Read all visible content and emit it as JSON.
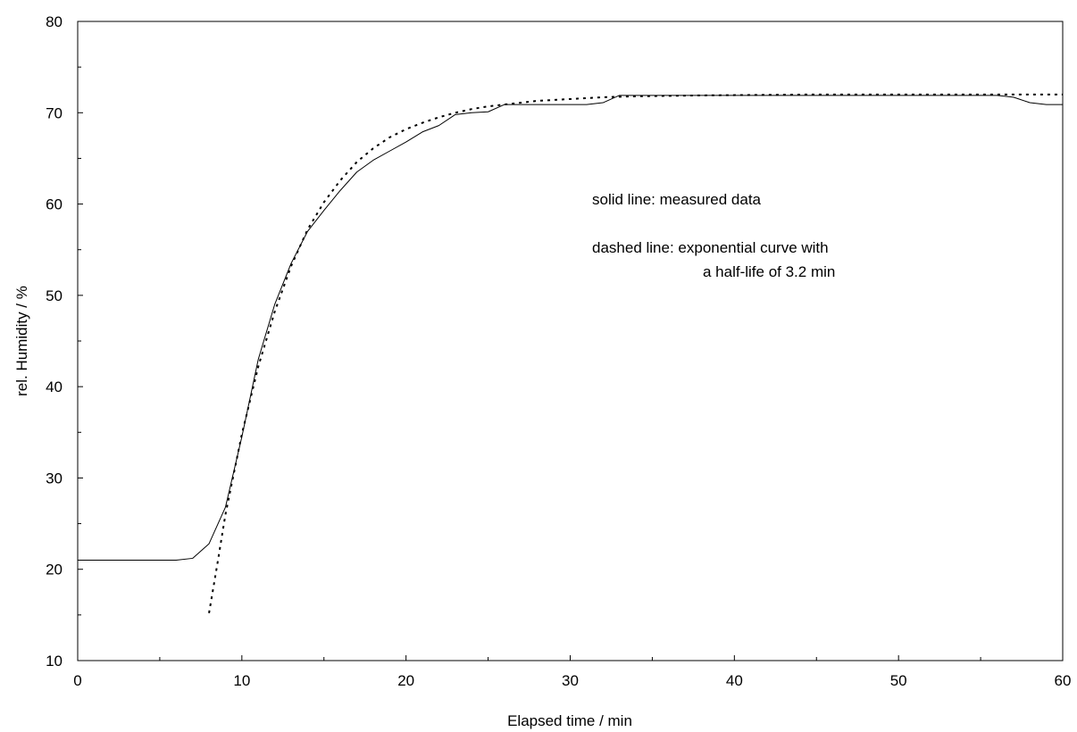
{
  "chart_data": {
    "type": "line",
    "title": "",
    "xlabel": "Elapsed time / min",
    "ylabel": "rel. Humidity / %",
    "xlim": [
      0,
      60
    ],
    "ylim": [
      10,
      80
    ],
    "x_major_ticks": [
      0,
      10,
      20,
      30,
      40,
      50,
      60
    ],
    "x_minor_ticks": [
      5,
      15,
      25,
      35,
      45,
      55
    ],
    "y_major_ticks": [
      10,
      20,
      30,
      40,
      50,
      60,
      70,
      80
    ],
    "y_minor_ticks": [
      15,
      25,
      35,
      45,
      55,
      65,
      75
    ],
    "grid": false,
    "annotations": [
      "solid line: measured data",
      "dashed line: exponential curve with",
      "a half-life of 3.2 min"
    ],
    "series": [
      {
        "style": "solid",
        "color": "#000000",
        "points": [
          [
            0,
            21
          ],
          [
            6,
            21
          ],
          [
            7,
            21.2
          ],
          [
            8,
            22.8
          ],
          [
            9,
            26.8
          ],
          [
            10,
            34.5
          ],
          [
            11,
            43
          ],
          [
            12,
            49
          ],
          [
            13,
            53.5
          ],
          [
            14,
            57
          ],
          [
            15,
            59.3
          ],
          [
            16,
            61.5
          ],
          [
            17,
            63.5
          ],
          [
            18,
            64.8
          ],
          [
            19,
            65.8
          ],
          [
            20,
            66.8
          ],
          [
            21,
            67.9
          ],
          [
            22,
            68.6
          ],
          [
            23,
            69.8
          ],
          [
            24,
            70
          ],
          [
            25,
            70.1
          ],
          [
            26,
            70.9
          ],
          [
            27,
            70.9
          ],
          [
            28,
            70.9
          ],
          [
            29,
            70.9
          ],
          [
            30,
            70.9
          ],
          [
            31,
            70.9
          ],
          [
            32,
            71.1
          ],
          [
            33,
            71.9
          ],
          [
            34,
            71.9
          ],
          [
            40,
            71.9
          ],
          [
            50,
            71.9
          ],
          [
            56,
            71.9
          ],
          [
            57,
            71.7
          ],
          [
            58,
            71.1
          ],
          [
            59,
            70.9
          ],
          [
            60,
            70.9
          ]
        ]
      },
      {
        "style": "dotted",
        "color": "#000000",
        "points": [
          [
            8,
            15.2
          ],
          [
            8.5,
            20.5
          ],
          [
            9,
            26
          ],
          [
            10,
            34.8
          ],
          [
            11,
            42.2
          ],
          [
            12,
            48.2
          ],
          [
            13,
            53.2
          ],
          [
            14,
            57.2
          ],
          [
            15,
            60.2
          ],
          [
            16,
            62.6
          ],
          [
            17,
            64.6
          ],
          [
            18,
            66.1
          ],
          [
            19,
            67.3
          ],
          [
            20,
            68.2
          ],
          [
            21,
            68.9
          ],
          [
            22,
            69.5
          ],
          [
            23,
            70
          ],
          [
            24,
            70.4
          ],
          [
            25,
            70.7
          ],
          [
            26,
            70.9
          ],
          [
            27,
            71.1
          ],
          [
            28,
            71.3
          ],
          [
            29,
            71.4
          ],
          [
            30,
            71.5
          ],
          [
            32,
            71.7
          ],
          [
            34,
            71.8
          ],
          [
            38,
            71.9
          ],
          [
            45,
            72
          ],
          [
            60,
            72
          ]
        ]
      }
    ]
  }
}
